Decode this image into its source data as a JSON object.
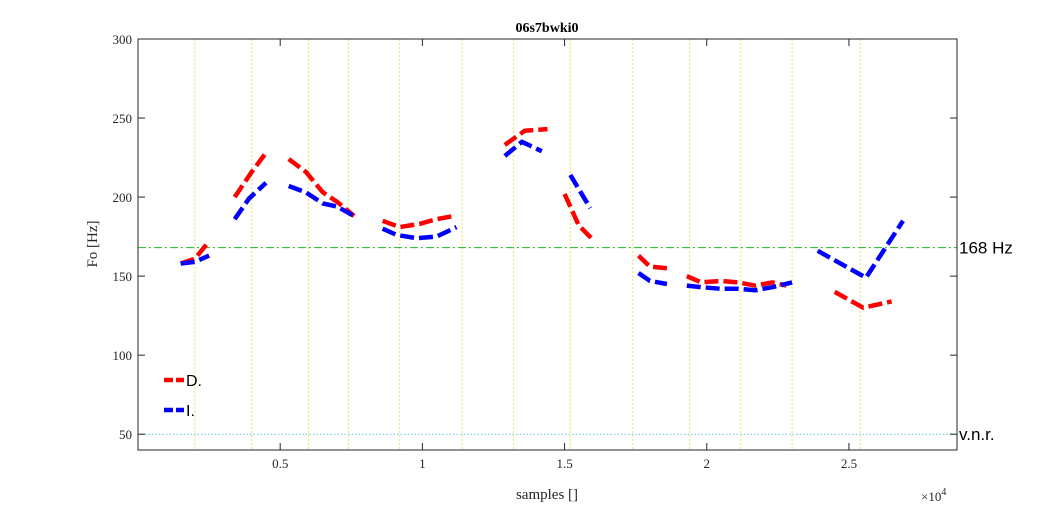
{
  "chart_data": {
    "type": "line",
    "title": "06s7bwki0",
    "xlabel": "samples []",
    "ylabel": "Fo [Hz]",
    "x_exponent_label": "×10^4",
    "xlim": [
      0,
      28800
    ],
    "ylim": [
      40,
      300
    ],
    "xticks": [
      5000,
      10000,
      15000,
      20000,
      25000
    ],
    "xtick_labels": [
      "0.5",
      "1",
      "1.5",
      "2",
      "2.5"
    ],
    "yticks": [
      50,
      100,
      150,
      200,
      250,
      300
    ],
    "ytick_labels": [
      "50",
      "100",
      "150",
      "200",
      "250",
      "300"
    ],
    "vertical_markers": [
      2000,
      4000,
      6000,
      7400,
      9200,
      11400,
      13200,
      15200,
      17400,
      19400,
      21200,
      23000,
      25400
    ],
    "reference_lines": [
      {
        "y": 168,
        "label": "168 Hz",
        "color": "#22b422",
        "style": "dashdot"
      },
      {
        "y": 50,
        "label": "v.n.r.",
        "color": "#5ac8d8",
        "style": "dotted"
      }
    ],
    "series": [
      {
        "name": "D.",
        "color": "#ff0000",
        "segments": [
          [
            [
              1500,
              158
            ],
            [
              2000,
              161
            ],
            [
              2500,
              172
            ]
          ],
          [
            [
              3400,
              200
            ],
            [
              4000,
              216
            ],
            [
              4500,
              228
            ]
          ],
          [
            [
              5300,
              224
            ],
            [
              5900,
              216
            ],
            [
              6500,
              203
            ],
            [
              7000,
              197
            ],
            [
              7600,
              188
            ]
          ],
          [
            [
              8600,
              185
            ],
            [
              9200,
              181
            ],
            [
              9900,
              183
            ],
            [
              10500,
              186
            ],
            [
              11100,
              188
            ]
          ],
          [
            [
              12900,
              233
            ],
            [
              13600,
              242
            ],
            [
              14400,
              243
            ]
          ],
          [
            [
              15000,
              202
            ],
            [
              15500,
              182
            ],
            [
              16000,
              173
            ]
          ],
          [
            [
              17600,
              163
            ],
            [
              18000,
              156
            ],
            [
              18600,
              155
            ]
          ],
          [
            [
              19300,
              150
            ],
            [
              19800,
              146
            ],
            [
              20500,
              147
            ],
            [
              21100,
              146
            ],
            [
              21700,
              144
            ],
            [
              22300,
              146
            ],
            [
              22800,
              144
            ]
          ],
          [
            [
              24500,
              140
            ],
            [
              25500,
              130
            ],
            [
              26500,
              134
            ]
          ]
        ]
      },
      {
        "name": "I.",
        "color": "#0000ff",
        "segments": [
          [
            [
              1500,
              158
            ],
            [
              2000,
              159
            ],
            [
              2500,
              163
            ]
          ],
          [
            [
              3400,
              186
            ],
            [
              3900,
              199
            ],
            [
              4500,
              209
            ]
          ],
          [
            [
              5300,
              207
            ],
            [
              5900,
              203
            ],
            [
              6500,
              196
            ],
            [
              7000,
              194
            ],
            [
              7600,
              188
            ]
          ],
          [
            [
              8600,
              180
            ],
            [
              9100,
              176
            ],
            [
              9800,
              174
            ],
            [
              10500,
              175
            ],
            [
              11200,
              181
            ]
          ],
          [
            [
              12900,
              226
            ],
            [
              13500,
              235
            ],
            [
              14200,
              229
            ]
          ],
          [
            [
              15200,
              214
            ],
            [
              15900,
              193
            ]
          ],
          [
            [
              17600,
              152
            ],
            [
              18000,
              147
            ],
            [
              18600,
              145
            ]
          ],
          [
            [
              19300,
              144
            ],
            [
              19800,
              143
            ],
            [
              20500,
              142
            ],
            [
              21100,
              142
            ],
            [
              21700,
              141
            ],
            [
              22300,
              143
            ],
            [
              23000,
              146
            ]
          ],
          [
            [
              23900,
              166
            ],
            [
              25600,
              149
            ],
            [
              26900,
              185
            ]
          ]
        ]
      }
    ],
    "legend": {
      "placement": "bottom-left",
      "entries": [
        "D.",
        "I."
      ]
    },
    "grid": false
  }
}
